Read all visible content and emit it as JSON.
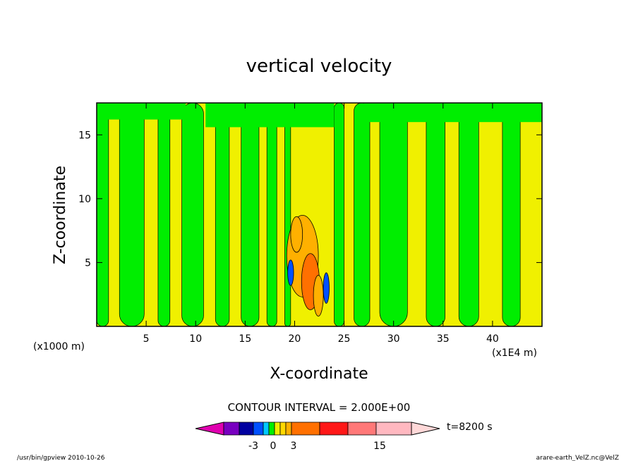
{
  "chart_data": {
    "type": "heatmap",
    "title": "vertical velocity",
    "xlabel": "X-coordinate",
    "ylabel": "Z-coordinate",
    "x_units_label": "(x1000 m)",
    "x_multiplier_label": "(x1E4 m)",
    "xlim": [
      0,
      45
    ],
    "ylim": [
      0,
      17.5
    ],
    "x_ticks": [
      5,
      10,
      15,
      20,
      25,
      30,
      35,
      40
    ],
    "y_ticks": [
      5,
      10,
      15
    ],
    "x_tick_labels": [
      "5",
      "10",
      "15",
      "20",
      "25",
      "30",
      "35",
      "40"
    ],
    "y_tick_labels": [
      "5",
      "10",
      "15"
    ],
    "contour_interval_label": "CONTOUR INTERVAL = 2.000E+00",
    "time_label": "t=8200 s",
    "colorbar": {
      "colors": [
        "#e000b0",
        "#7800c0",
        "#0000a0",
        "#0050ff",
        "#00c8ff",
        "#00ee00",
        "#f0f000",
        "#ffd800",
        "#ffb000",
        "#ff7000",
        "#ff1818",
        "#ff7878",
        "#ffb8c0",
        "#ffd8d8"
      ],
      "tick_labels": [
        "-3",
        "0",
        "3",
        "15"
      ],
      "tick_values": [
        -3,
        0,
        3,
        15
      ]
    },
    "field_colors": {
      "positive": "#f0f000",
      "negative": "#00ee00",
      "strong_positive": "#ffb000",
      "strong_positive_2": "#ff7000",
      "strong_negative": "#0050ff"
    }
  },
  "footer": {
    "left": "/usr/bin/gpview   2010-10-26",
    "right": "arare-earth_VelZ.nc@VelZ"
  }
}
